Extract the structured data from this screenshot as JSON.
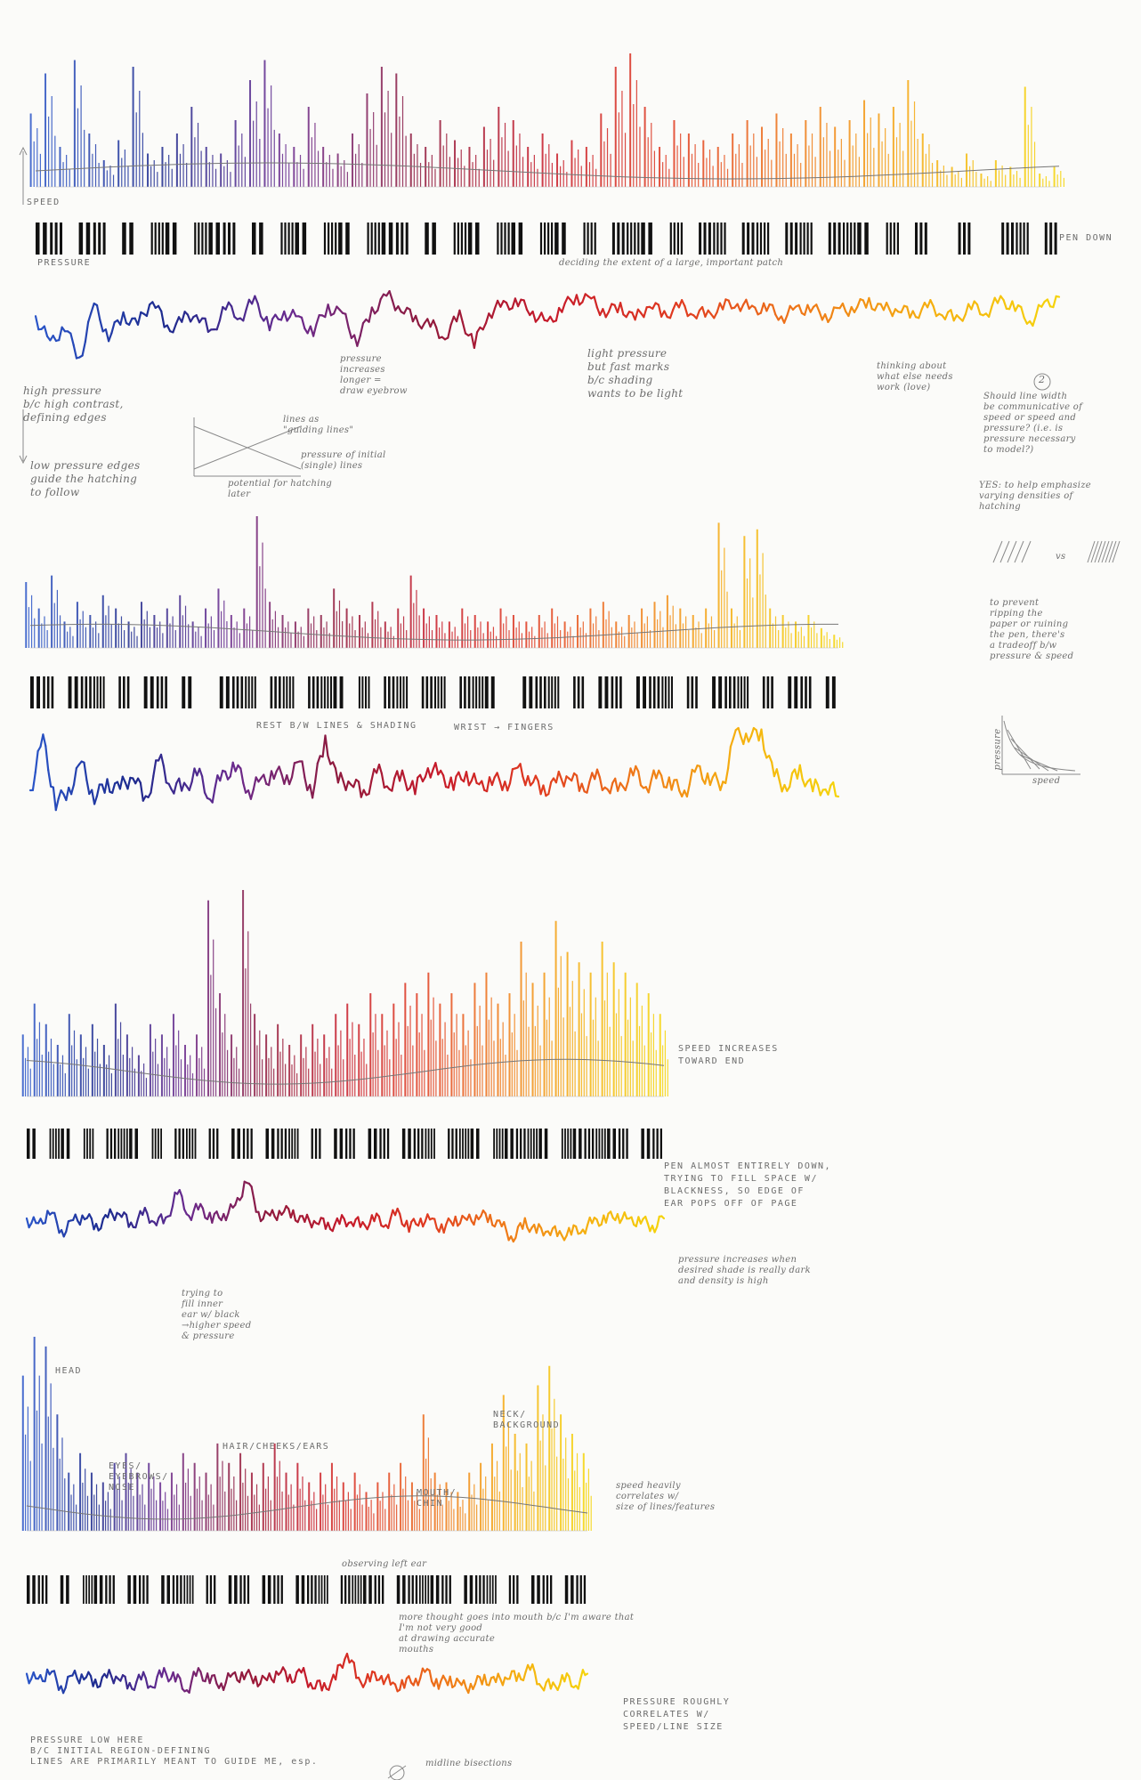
{
  "chart_data": [
    {
      "type": "line",
      "panel": 1,
      "series": [
        {
          "name": "SPEED",
          "kind": "speed",
          "values": [
            0.55,
            0.85,
            0.3,
            0.95,
            0.4,
            0.2,
            0.35,
            0.9,
            0.25,
            0.3,
            0.4,
            0.6,
            0.3,
            0.25,
            0.5,
            0.8,
            0.95,
            0.4,
            0.3,
            0.6,
            0.3,
            0.25,
            0.4,
            0.7,
            0.9,
            0.85,
            0.4,
            0.3,
            0.5,
            0.35,
            0.3,
            0.45,
            0.6,
            0.5,
            0.3,
            0.4,
            0.25,
            0.35,
            0.3,
            0.55,
            0.9,
            1.0,
            0.6,
            0.3,
            0.5,
            0.4,
            0.35,
            0.3,
            0.4,
            0.5,
            0.45,
            0.55,
            0.4,
            0.5,
            0.6,
            0.45,
            0.5,
            0.65,
            0.55,
            0.6,
            0.8,
            0.4,
            0.2,
            0.15,
            0.25,
            0.1,
            0.2,
            0.15,
            0.75,
            0.1,
            0.15
          ]
        },
        {
          "name": "PEN DOWN",
          "kind": "pendown",
          "values": [
            1,
            1,
            0,
            1,
            1,
            0,
            1,
            0,
            1,
            1,
            0,
            1,
            1,
            1,
            0,
            1,
            0,
            1,
            1,
            0,
            1,
            1,
            0,
            1,
            1,
            1,
            0,
            1,
            0,
            1,
            1,
            0,
            1,
            1,
            0,
            1,
            1,
            0,
            1,
            0,
            1,
            1,
            1,
            0,
            1,
            0,
            1,
            1,
            0,
            1,
            1,
            0,
            1,
            1,
            0,
            1,
            1,
            1,
            0,
            1,
            0,
            1,
            0,
            0,
            1,
            0,
            0,
            1,
            1,
            0,
            1
          ]
        },
        {
          "name": "PRESSURE",
          "kind": "pressure",
          "values": [
            0.4,
            0.7,
            0.5,
            0.85,
            0.3,
            0.6,
            0.4,
            0.5,
            0.2,
            0.55,
            0.45,
            0.35,
            0.6,
            0.3,
            0.4,
            0.25,
            0.5,
            0.35,
            0.45,
            0.55,
            0.3,
            0.4,
            0.65,
            0.35,
            0.2,
            0.3,
            0.45,
            0.5,
            0.6,
            0.4,
            0.7,
            0.35,
            0.3,
            0.25,
            0.35,
            0.5,
            0.3,
            0.2,
            0.25,
            0.35,
            0.3,
            0.45,
            0.25,
            0.4,
            0.3,
            0.35,
            0.4,
            0.3,
            0.25,
            0.35,
            0.3,
            0.4,
            0.35,
            0.3,
            0.4,
            0.35,
            0.3,
            0.25,
            0.35,
            0.3,
            0.4,
            0.3,
            0.35,
            0.45,
            0.3,
            0.35,
            0.25,
            0.3,
            0.45,
            0.3,
            0.2
          ]
        }
      ]
    },
    {
      "type": "line",
      "panel": 2,
      "series": [
        {
          "kind": "speed",
          "values": [
            0.5,
            0.3,
            0.55,
            0.2,
            0.35,
            0.25,
            0.4,
            0.3,
            0.2,
            0.35,
            0.25,
            0.3,
            0.4,
            0.2,
            0.3,
            0.45,
            0.25,
            0.3,
            1.0,
            0.35,
            0.25,
            0.2,
            0.3,
            0.25,
            0.45,
            0.3,
            0.25,
            0.35,
            0.2,
            0.3,
            0.55,
            0.3,
            0.25,
            0.2,
            0.3,
            0.25,
            0.2,
            0.3,
            0.25,
            0.2,
            0.25,
            0.3,
            0.2,
            0.25,
            0.3,
            0.35,
            0.2,
            0.25,
            0.3,
            0.35,
            0.4,
            0.3,
            0.25,
            0.3,
            0.95,
            0.3,
            0.85,
            0.9,
            0.3,
            0.25,
            0.2,
            0.25,
            0.15,
            0.1
          ]
        },
        {
          "kind": "pendown",
          "values": [
            1,
            1,
            0,
            1,
            1,
            1,
            0,
            1,
            0,
            1,
            1,
            0,
            1,
            0,
            0,
            1,
            1,
            1,
            0,
            1,
            1,
            0,
            1,
            1,
            1,
            0,
            1,
            0,
            1,
            1,
            0,
            1,
            1,
            0,
            1,
            1,
            1,
            0,
            0,
            1,
            1,
            1,
            0,
            1,
            0,
            1,
            1,
            0,
            1,
            1,
            1,
            0,
            1,
            0,
            1,
            1,
            1,
            0,
            1,
            0,
            1,
            1,
            0,
            1
          ]
        },
        {
          "kind": "pressure",
          "values": [
            0.5,
            0.1,
            0.6,
            0.5,
            0.3,
            0.55,
            0.45,
            0.5,
            0.35,
            0.6,
            0.25,
            0.45,
            0.5,
            0.35,
            0.55,
            0.4,
            0.3,
            0.5,
            0.45,
            0.35,
            0.4,
            0.3,
            0.5,
            0.1,
            0.45,
            0.4,
            0.55,
            0.35,
            0.45,
            0.4,
            0.5,
            0.3,
            0.4,
            0.45,
            0.35,
            0.5,
            0.4,
            0.45,
            0.35,
            0.4,
            0.5,
            0.45,
            0.35,
            0.5,
            0.4,
            0.45,
            0.5,
            0.35,
            0.45,
            0.4,
            0.45,
            0.5,
            0.35,
            0.4,
            0.45,
            0.05,
            0.05,
            0.05,
            0.4,
            0.45,
            0.35,
            0.5,
            0.45,
            0.55
          ]
        }
      ]
    },
    {
      "type": "line",
      "panel": 3,
      "series": [
        {
          "kind": "speed",
          "values": [
            0.3,
            0.45,
            0.35,
            0.25,
            0.4,
            0.3,
            0.35,
            0.25,
            0.45,
            0.3,
            0.2,
            0.35,
            0.3,
            0.4,
            0.25,
            0.3,
            0.95,
            0.5,
            0.3,
            1.0,
            0.4,
            0.3,
            0.35,
            0.25,
            0.3,
            0.35,
            0.3,
            0.4,
            0.45,
            0.35,
            0.5,
            0.4,
            0.45,
            0.55,
            0.5,
            0.6,
            0.45,
            0.5,
            0.4,
            0.55,
            0.6,
            0.45,
            0.5,
            0.75,
            0.55,
            0.6,
            0.85,
            0.7,
            0.65,
            0.6,
            0.75,
            0.65,
            0.6,
            0.55,
            0.5,
            0.4
          ]
        },
        {
          "kind": "pendown",
          "values": [
            1,
            0,
            1,
            1,
            0,
            1,
            0,
            1,
            1,
            1,
            0,
            1,
            0,
            1,
            1,
            0,
            1,
            0,
            1,
            1,
            0,
            1,
            1,
            1,
            0,
            1,
            0,
            1,
            1,
            0,
            1,
            1,
            0,
            1,
            1,
            1,
            0,
            1,
            1,
            1,
            0,
            1,
            1,
            1,
            1,
            1,
            0,
            1,
            1,
            1,
            1,
            1,
            1,
            0,
            1,
            1
          ]
        },
        {
          "kind": "pressure",
          "values": [
            0.5,
            0.6,
            0.4,
            0.65,
            0.55,
            0.45,
            0.6,
            0.5,
            0.4,
            0.6,
            0.45,
            0.5,
            0.55,
            0.2,
            0.45,
            0.4,
            0.5,
            0.45,
            0.4,
            0.05,
            0.45,
            0.5,
            0.4,
            0.45,
            0.55,
            0.5,
            0.6,
            0.55,
            0.5,
            0.6,
            0.5,
            0.55,
            0.45,
            0.6,
            0.5,
            0.55,
            0.6,
            0.5,
            0.55,
            0.45,
            0.5,
            0.6,
            0.7,
            0.55,
            0.65,
            0.6,
            0.7,
            0.65,
            0.6,
            0.55,
            0.5,
            0.45,
            0.55,
            0.5,
            0.6,
            0.5
          ]
        }
      ]
    },
    {
      "type": "line",
      "panel": 4,
      "series": [
        {
          "kind": "speed",
          "values": [
            0.8,
            1.0,
            0.95,
            0.6,
            0.3,
            0.4,
            0.3,
            0.25,
            0.35,
            0.4,
            0.3,
            0.35,
            0.25,
            0.3,
            0.4,
            0.35,
            0.3,
            0.45,
            0.35,
            0.4,
            0.3,
            0.35,
            0.45,
            0.3,
            0.35,
            0.25,
            0.3,
            0.35,
            0.25,
            0.3,
            0.2,
            0.25,
            0.3,
            0.35,
            0.25,
            0.6,
            0.3,
            0.25,
            0.2,
            0.3,
            0.35,
            0.45,
            0.7,
            0.5,
            0.45,
            0.75,
            0.85,
            0.6,
            0.5,
            0.4
          ]
        },
        {
          "kind": "pendown",
          "values": [
            1,
            1,
            0,
            1,
            0,
            1,
            1,
            1,
            0,
            1,
            1,
            0,
            1,
            1,
            1,
            0,
            1,
            0,
            1,
            1,
            0,
            1,
            1,
            0,
            1,
            1,
            1,
            0,
            1,
            1,
            1,
            1,
            0,
            1,
            1,
            1,
            1,
            1,
            0,
            1,
            1,
            1,
            0,
            1,
            0,
            1,
            1,
            0,
            1,
            1
          ]
        },
        {
          "kind": "pressure",
          "values": [
            0.45,
            0.55,
            0.4,
            0.6,
            0.5,
            0.45,
            0.55,
            0.5,
            0.45,
            0.6,
            0.5,
            0.55,
            0.45,
            0.5,
            0.6,
            0.45,
            0.5,
            0.55,
            0.5,
            0.45,
            0.5,
            0.55,
            0.4,
            0.5,
            0.45,
            0.55,
            0.6,
            0.5,
            0.2,
            0.55,
            0.5,
            0.45,
            0.6,
            0.55,
            0.5,
            0.45,
            0.55,
            0.5,
            0.6,
            0.55,
            0.5,
            0.55,
            0.45,
            0.5,
            0.4,
            0.55,
            0.6,
            0.5,
            0.55,
            0.45
          ]
        }
      ]
    }
  ],
  "annotations": {
    "speed_label": "SPEED",
    "pressure_label": "PRESSURE",
    "pen_down": "PEN DOWN",
    "deciding": "deciding the extent of a large, important patch",
    "high_pressure": "high pressure\nb/c high contrast,\ndefining edges",
    "low_pressure_edges": "low pressure edges\nguide the hatching\nto follow",
    "lines_as_guiding": "lines as\n\"guiding lines\"",
    "pressure_of_initial": "pressure of initial\n(single) lines",
    "potential_hatching": "potential for hatching\nlater",
    "pressure_increases_eyebrow": "pressure\nincreases\nlonger =\ndraw eyebrow",
    "light_pressure": "light pressure\nbut fast marks\nb/c shading\nwants to be light",
    "thinking_about": "thinking about\nwhat else needs\nwork (love)",
    "circled_two": "2",
    "line_width_note": "Should line width\nbe communicative of\nspeed or speed and\npressure? (i.e. is\npressure necessary\nto model?)",
    "yes_note": "YES: to help emphasize\nvarying densities of\nhatching",
    "vs": "vs",
    "prevent_ripping": "to prevent\nripping the\npaper or ruining\nthe pen, there's\na tradeoff b/w\npressure & speed",
    "inset_y": "pressure",
    "inset_x": "speed",
    "rest_lines": "REST B/W LINES & SHADING",
    "wrist_fingers": "WRIST → FINGERS",
    "speed_increases": "SPEED INCREASES\nTOWARD END",
    "pen_almost_down": "PEN ALMOST ENTIRELY DOWN,\nTRYING TO FILL SPACE W/\nBLACKNESS, SO EDGE OF\nEAR POPS OFF OF PAGE",
    "pressure_increases_dark": "pressure increases when\ndesired shade is really dark\nand density is high",
    "trying_fill": "trying to\nfill inner\near w/ black\n→higher speed\n& pressure",
    "head": "HEAD",
    "eyes": "EYES/\nEYEBROWS/\nNOSE",
    "hair": "HAIR/CHEEKS/EARS",
    "mouth": "MOUTH/\nCHIN",
    "neck": "NECK/\nBACKGROUND",
    "speed_correlates": "speed heavily\ncorrelates w/\nsize of lines/features",
    "observing": "observing left ear",
    "more_thought": "more thought goes into mouth b/c I'm aware that\nI'm not very good\nat drawing accurate\nmouths",
    "pressure_roughly": "PRESSURE ROUGHLY\nCORRELATES W/\nSPEED/LINE SIZE",
    "pressure_low": "PRESSURE LOW HERE\nB/C INITIAL REGION-DEFINING\nLINES ARE PRIMARILY MEANT TO GUIDE ME, esp.",
    "midline": "midline bisections"
  },
  "colors": {
    "spectrum": [
      "#2a55c8",
      "#1d2a8e",
      "#6a2a8e",
      "#8e1a3e",
      "#c61a2a",
      "#e03a20",
      "#ef7a18",
      "#f5b010",
      "#f5d40c"
    ],
    "pencil": "#6d6d6d",
    "barcode": "#111111",
    "paper": "#fbfbf9"
  }
}
